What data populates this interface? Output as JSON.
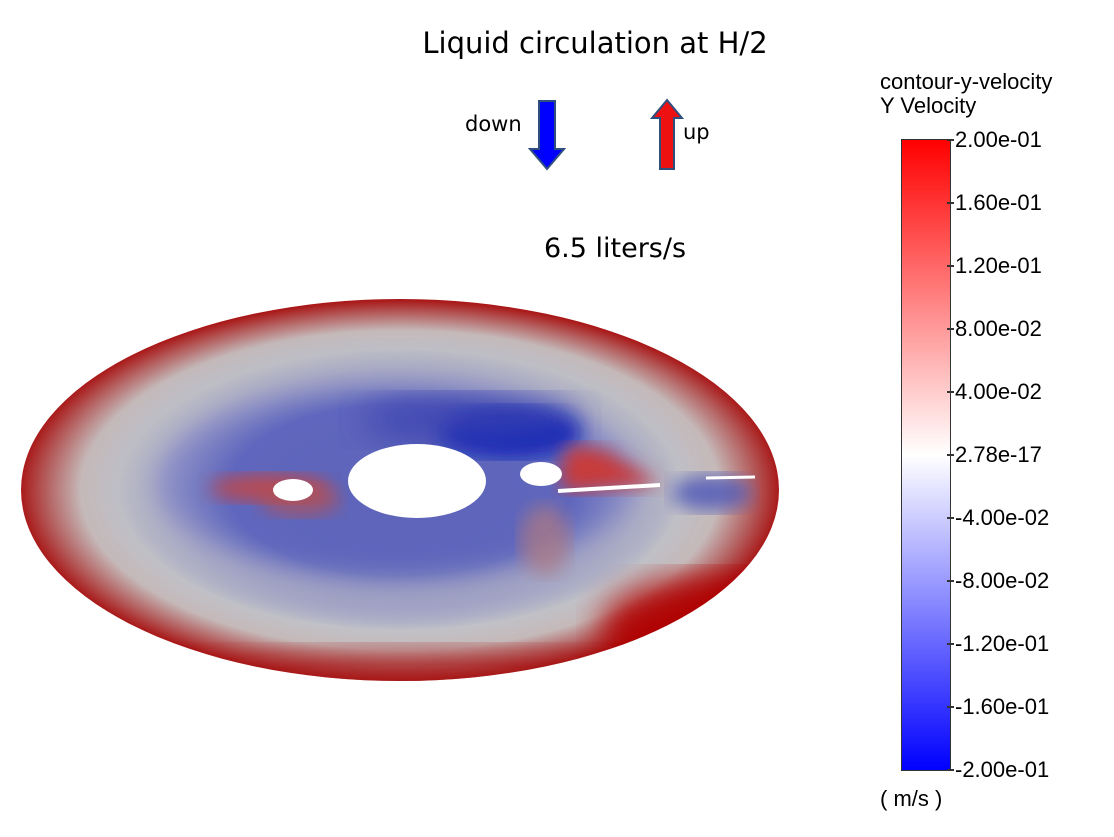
{
  "title": "Liquid circulation at H/2",
  "flow_rate": "6.5 liters/s",
  "direction_legend": {
    "down_label": "down",
    "up_label": "up",
    "down_color": "#0000ff",
    "up_color": "#ee1111",
    "arrow_border": "#2f4f7f"
  },
  "colorbar": {
    "title_line1": "contour-y-velocity",
    "title_line2": "Y Velocity",
    "unit": "( m/s )",
    "max_color": "#ff0000",
    "mid_color": "#ffffff",
    "min_color": "#0000ff",
    "ticks": [
      "2.00e-01",
      "1.60e-01",
      "1.20e-01",
      "8.00e-02",
      "4.00e-02",
      "2.78e-17",
      "-4.00e-02",
      "-8.00e-02",
      "-1.20e-01",
      "-1.60e-01",
      "-2.00e-01"
    ]
  }
}
